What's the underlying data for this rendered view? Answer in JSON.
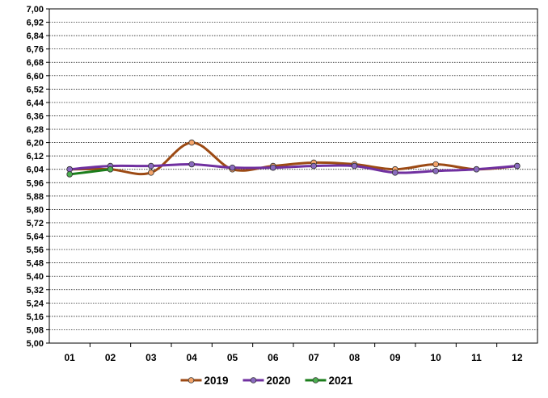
{
  "chart_data": {
    "type": "line",
    "title": "",
    "xlabel": "",
    "ylabel": "",
    "categories": [
      "01",
      "02",
      "03",
      "04",
      "05",
      "06",
      "07",
      "08",
      "09",
      "10",
      "11",
      "12"
    ],
    "ylim": [
      5.0,
      7.0
    ],
    "y_ticks": [
      "5,00",
      "5,08",
      "5,16",
      "5,24",
      "5,32",
      "5,40",
      "5,48",
      "5,56",
      "5,64",
      "5,72",
      "5,80",
      "5,88",
      "5,96",
      "6,04",
      "6,12",
      "6,20",
      "6,28",
      "6,36",
      "6,44",
      "6,52",
      "6,60",
      "6,68",
      "6,76",
      "6,84",
      "6,92",
      "7,00"
    ],
    "grid": true,
    "smooth": true,
    "legend_position": "bottom",
    "series": [
      {
        "name": "2019",
        "color": "#9c4a14",
        "marker_color": "#f4a46a",
        "values": [
          6.04,
          6.04,
          6.02,
          6.2,
          6.04,
          6.06,
          6.08,
          6.07,
          6.04,
          6.07,
          6.04,
          6.06
        ]
      },
      {
        "name": "2020",
        "color": "#7030a0",
        "marker_color": "#8a6bbf",
        "values": [
          6.04,
          6.06,
          6.06,
          6.07,
          6.05,
          6.05,
          6.06,
          6.06,
          6.02,
          6.03,
          6.04,
          6.06
        ]
      },
      {
        "name": "2021",
        "color": "#1b7d1b",
        "marker_color": "#4caf50",
        "values": [
          6.01,
          6.04,
          null,
          null,
          null,
          null,
          null,
          null,
          null,
          null,
          null,
          null
        ]
      }
    ]
  }
}
